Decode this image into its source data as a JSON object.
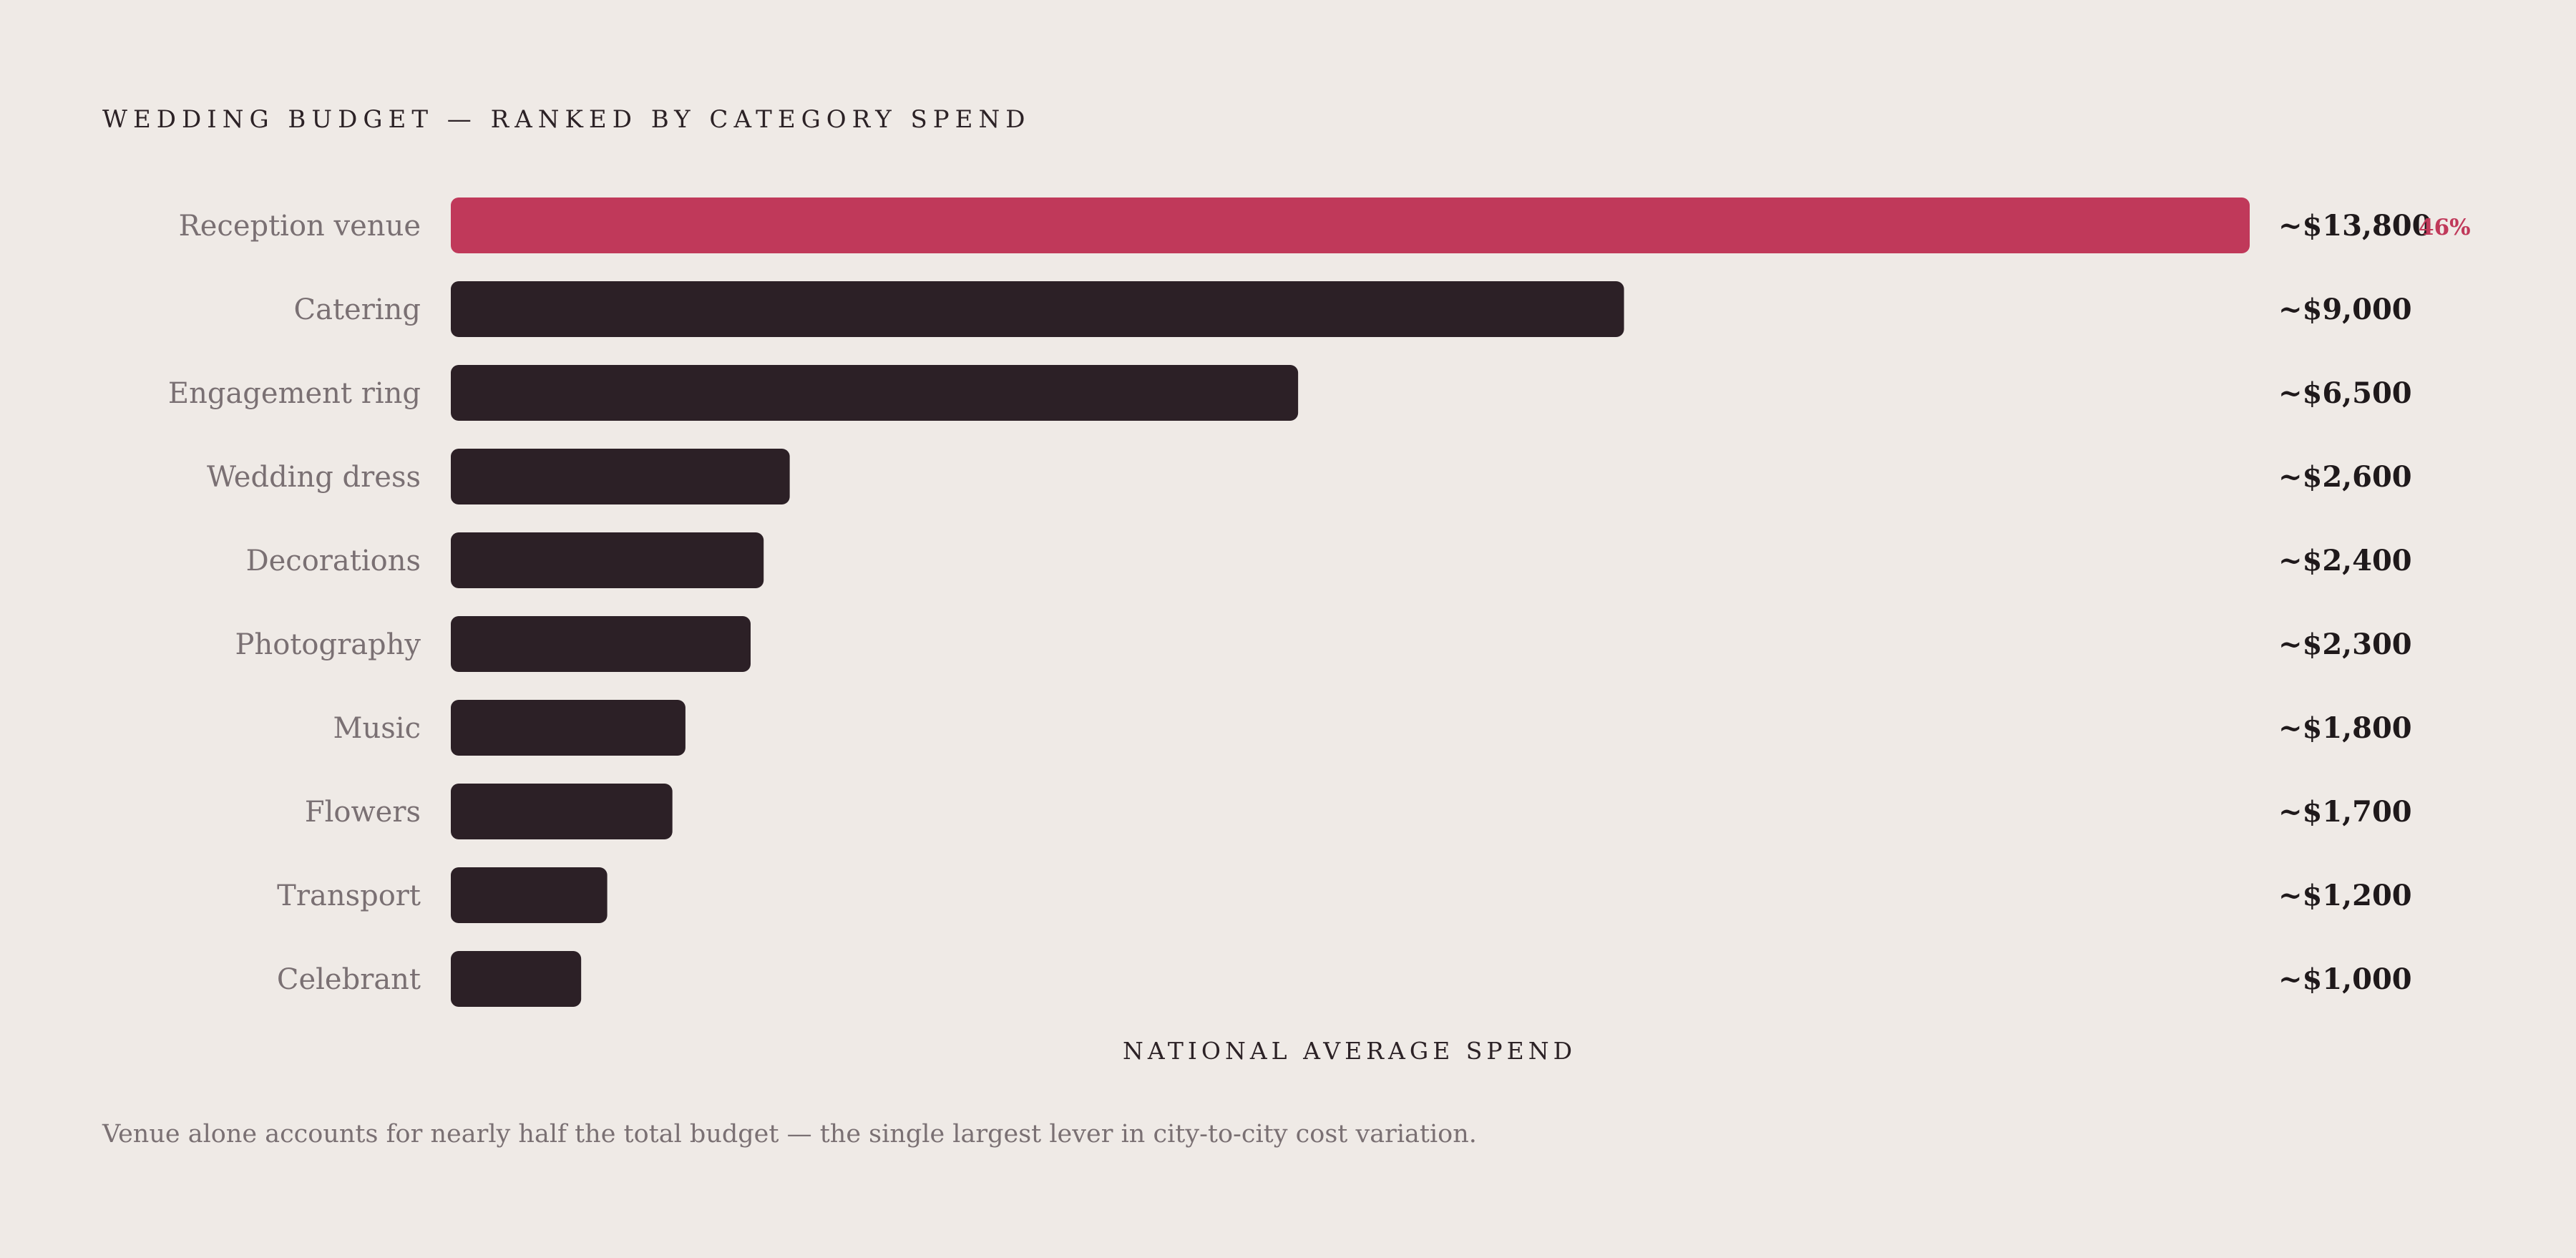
{
  "chart_data": {
    "type": "bar",
    "orientation": "horizontal",
    "title": "WEDDING BUDGET — RANKED BY CATEGORY SPEND",
    "xlabel": "NATIONAL AVERAGE SPEND",
    "ylabel": "",
    "xlim": [
      0,
      13800
    ],
    "grid": false,
    "categories": [
      "Reception venue",
      "Catering",
      "Engagement ring",
      "Wedding dress",
      "Decorations",
      "Photography",
      "Music",
      "Flowers",
      "Transport",
      "Celebrant"
    ],
    "values": [
      13800,
      9000,
      6500,
      2600,
      2400,
      2300,
      1800,
      1700,
      1200,
      1000
    ],
    "value_labels": [
      "~$13,800",
      "~$9,000",
      "~$6,500",
      "~$2,600",
      "~$2,400",
      "~$2,300",
      "~$1,800",
      "~$1,700",
      "~$1,200",
      "~$1,000"
    ],
    "highlight": {
      "index": 0,
      "annotation": "46%"
    },
    "colors": {
      "highlight": "#c0395a",
      "bar": "#2c2026",
      "background": "#efeae6"
    }
  },
  "footnote": "Venue alone accounts for nearly half the total budget — the single largest lever in city-to-city cost variation."
}
